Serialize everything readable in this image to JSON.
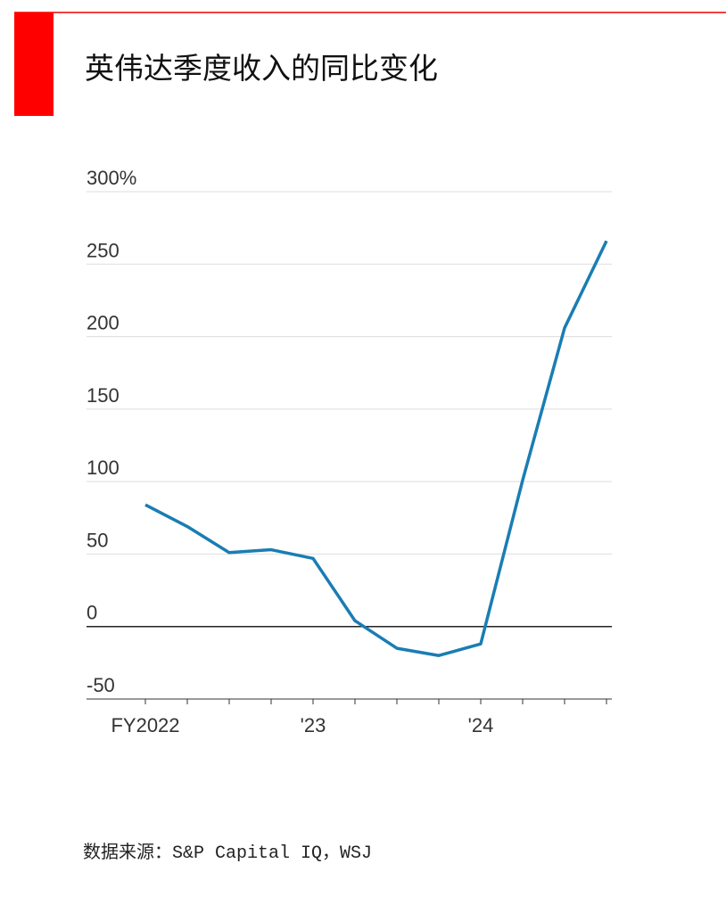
{
  "chart_data": {
    "type": "line",
    "title": "英伟达季度收入的同比变化",
    "categories": [
      "FY2022",
      null,
      null,
      null,
      "'23",
      null,
      null,
      null,
      "'24",
      null,
      null,
      null
    ],
    "series": [
      {
        "name": null,
        "color": "#1a7db3",
        "values": [
          84,
          69,
          51,
          53,
          47,
          4,
          -15,
          -20,
          -12,
          101,
          206,
          266
        ]
      }
    ],
    "ylim": [
      -50,
      300
    ],
    "yticks": [
      -50,
      0,
      50,
      100,
      150,
      200,
      250,
      {
        "value": 300,
        "label": "300%"
      }
    ],
    "grid": true,
    "source": "数据来源：S&P Capital IQ，WSJ"
  }
}
